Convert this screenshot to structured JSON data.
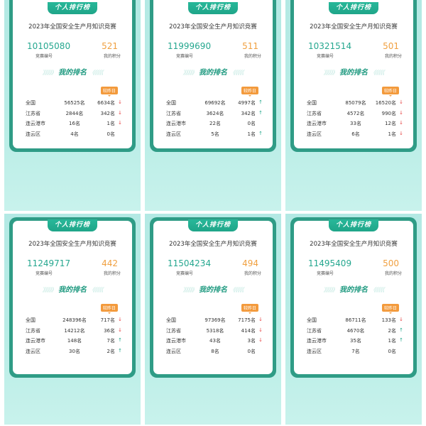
{
  "labels": {
    "tab": "个人排行榜",
    "title": "2023年全国安全生产月知识竞赛",
    "number_label": "竞赛编号",
    "score_label": "我的积分",
    "my_rank": "我的排名",
    "badge": "较昨日",
    "chevrons_left": "》》》》》",
    "chevrons_right": "《《《《《"
  },
  "colors": {
    "accent": "#25a78f",
    "score": "#f0a040",
    "down": "#e64646",
    "up": "#1fa589",
    "border": "#2f9c86"
  },
  "panels": [
    {
      "number": "10105080",
      "score": "521",
      "rows": [
        {
          "region": "全国",
          "rank": "56525名",
          "change": "6634名",
          "dir": "down"
        },
        {
          "region": "江苏省",
          "rank": "2844名",
          "change": "342名",
          "dir": "down"
        },
        {
          "region": "连云港市",
          "rank": "16名",
          "change": "1名",
          "dir": "down"
        },
        {
          "region": "连云区",
          "rank": "4名",
          "change": "0名",
          "dir": "none"
        }
      ]
    },
    {
      "number": "11999690",
      "score": "511",
      "rows": [
        {
          "region": "全国",
          "rank": "69692名",
          "change": "4997名",
          "dir": "up"
        },
        {
          "region": "江苏省",
          "rank": "3624名",
          "change": "342名",
          "dir": "up"
        },
        {
          "region": "连云港市",
          "rank": "22名",
          "change": "0名",
          "dir": "none"
        },
        {
          "region": "连云区",
          "rank": "5名",
          "change": "1名",
          "dir": "up"
        }
      ]
    },
    {
      "number": "10321514",
      "score": "501",
      "rows": [
        {
          "region": "全国",
          "rank": "85079名",
          "change": "16520名",
          "dir": "down"
        },
        {
          "region": "江苏省",
          "rank": "4572名",
          "change": "990名",
          "dir": "down"
        },
        {
          "region": "连云港市",
          "rank": "33名",
          "change": "12名",
          "dir": "down"
        },
        {
          "region": "连云区",
          "rank": "6名",
          "change": "1名",
          "dir": "down"
        }
      ]
    },
    {
      "number": "11249717",
      "score": "442",
      "rows": [
        {
          "region": "全国",
          "rank": "248396名",
          "change": "717名",
          "dir": "down"
        },
        {
          "region": "江苏省",
          "rank": "14212名",
          "change": "36名",
          "dir": "down"
        },
        {
          "region": "连云港市",
          "rank": "148名",
          "change": "7名",
          "dir": "up"
        },
        {
          "region": "连云区",
          "rank": "30名",
          "change": "2名",
          "dir": "up"
        }
      ]
    },
    {
      "number": "11504234",
      "score": "494",
      "rows": [
        {
          "region": "全国",
          "rank": "97369名",
          "change": "7175名",
          "dir": "down"
        },
        {
          "region": "江苏省",
          "rank": "5318名",
          "change": "414名",
          "dir": "down"
        },
        {
          "region": "连云港市",
          "rank": "43名",
          "change": "3名",
          "dir": "down"
        },
        {
          "region": "连云区",
          "rank": "8名",
          "change": "0名",
          "dir": "none"
        }
      ]
    },
    {
      "number": "11495409",
      "score": "500",
      "rows": [
        {
          "region": "全国",
          "rank": "86711名",
          "change": "133名",
          "dir": "down"
        },
        {
          "region": "江苏省",
          "rank": "4670名",
          "change": "2名",
          "dir": "up"
        },
        {
          "region": "连云港市",
          "rank": "35名",
          "change": "1名",
          "dir": "up"
        },
        {
          "region": "连云区",
          "rank": "7名",
          "change": "0名",
          "dir": "none"
        }
      ]
    }
  ]
}
